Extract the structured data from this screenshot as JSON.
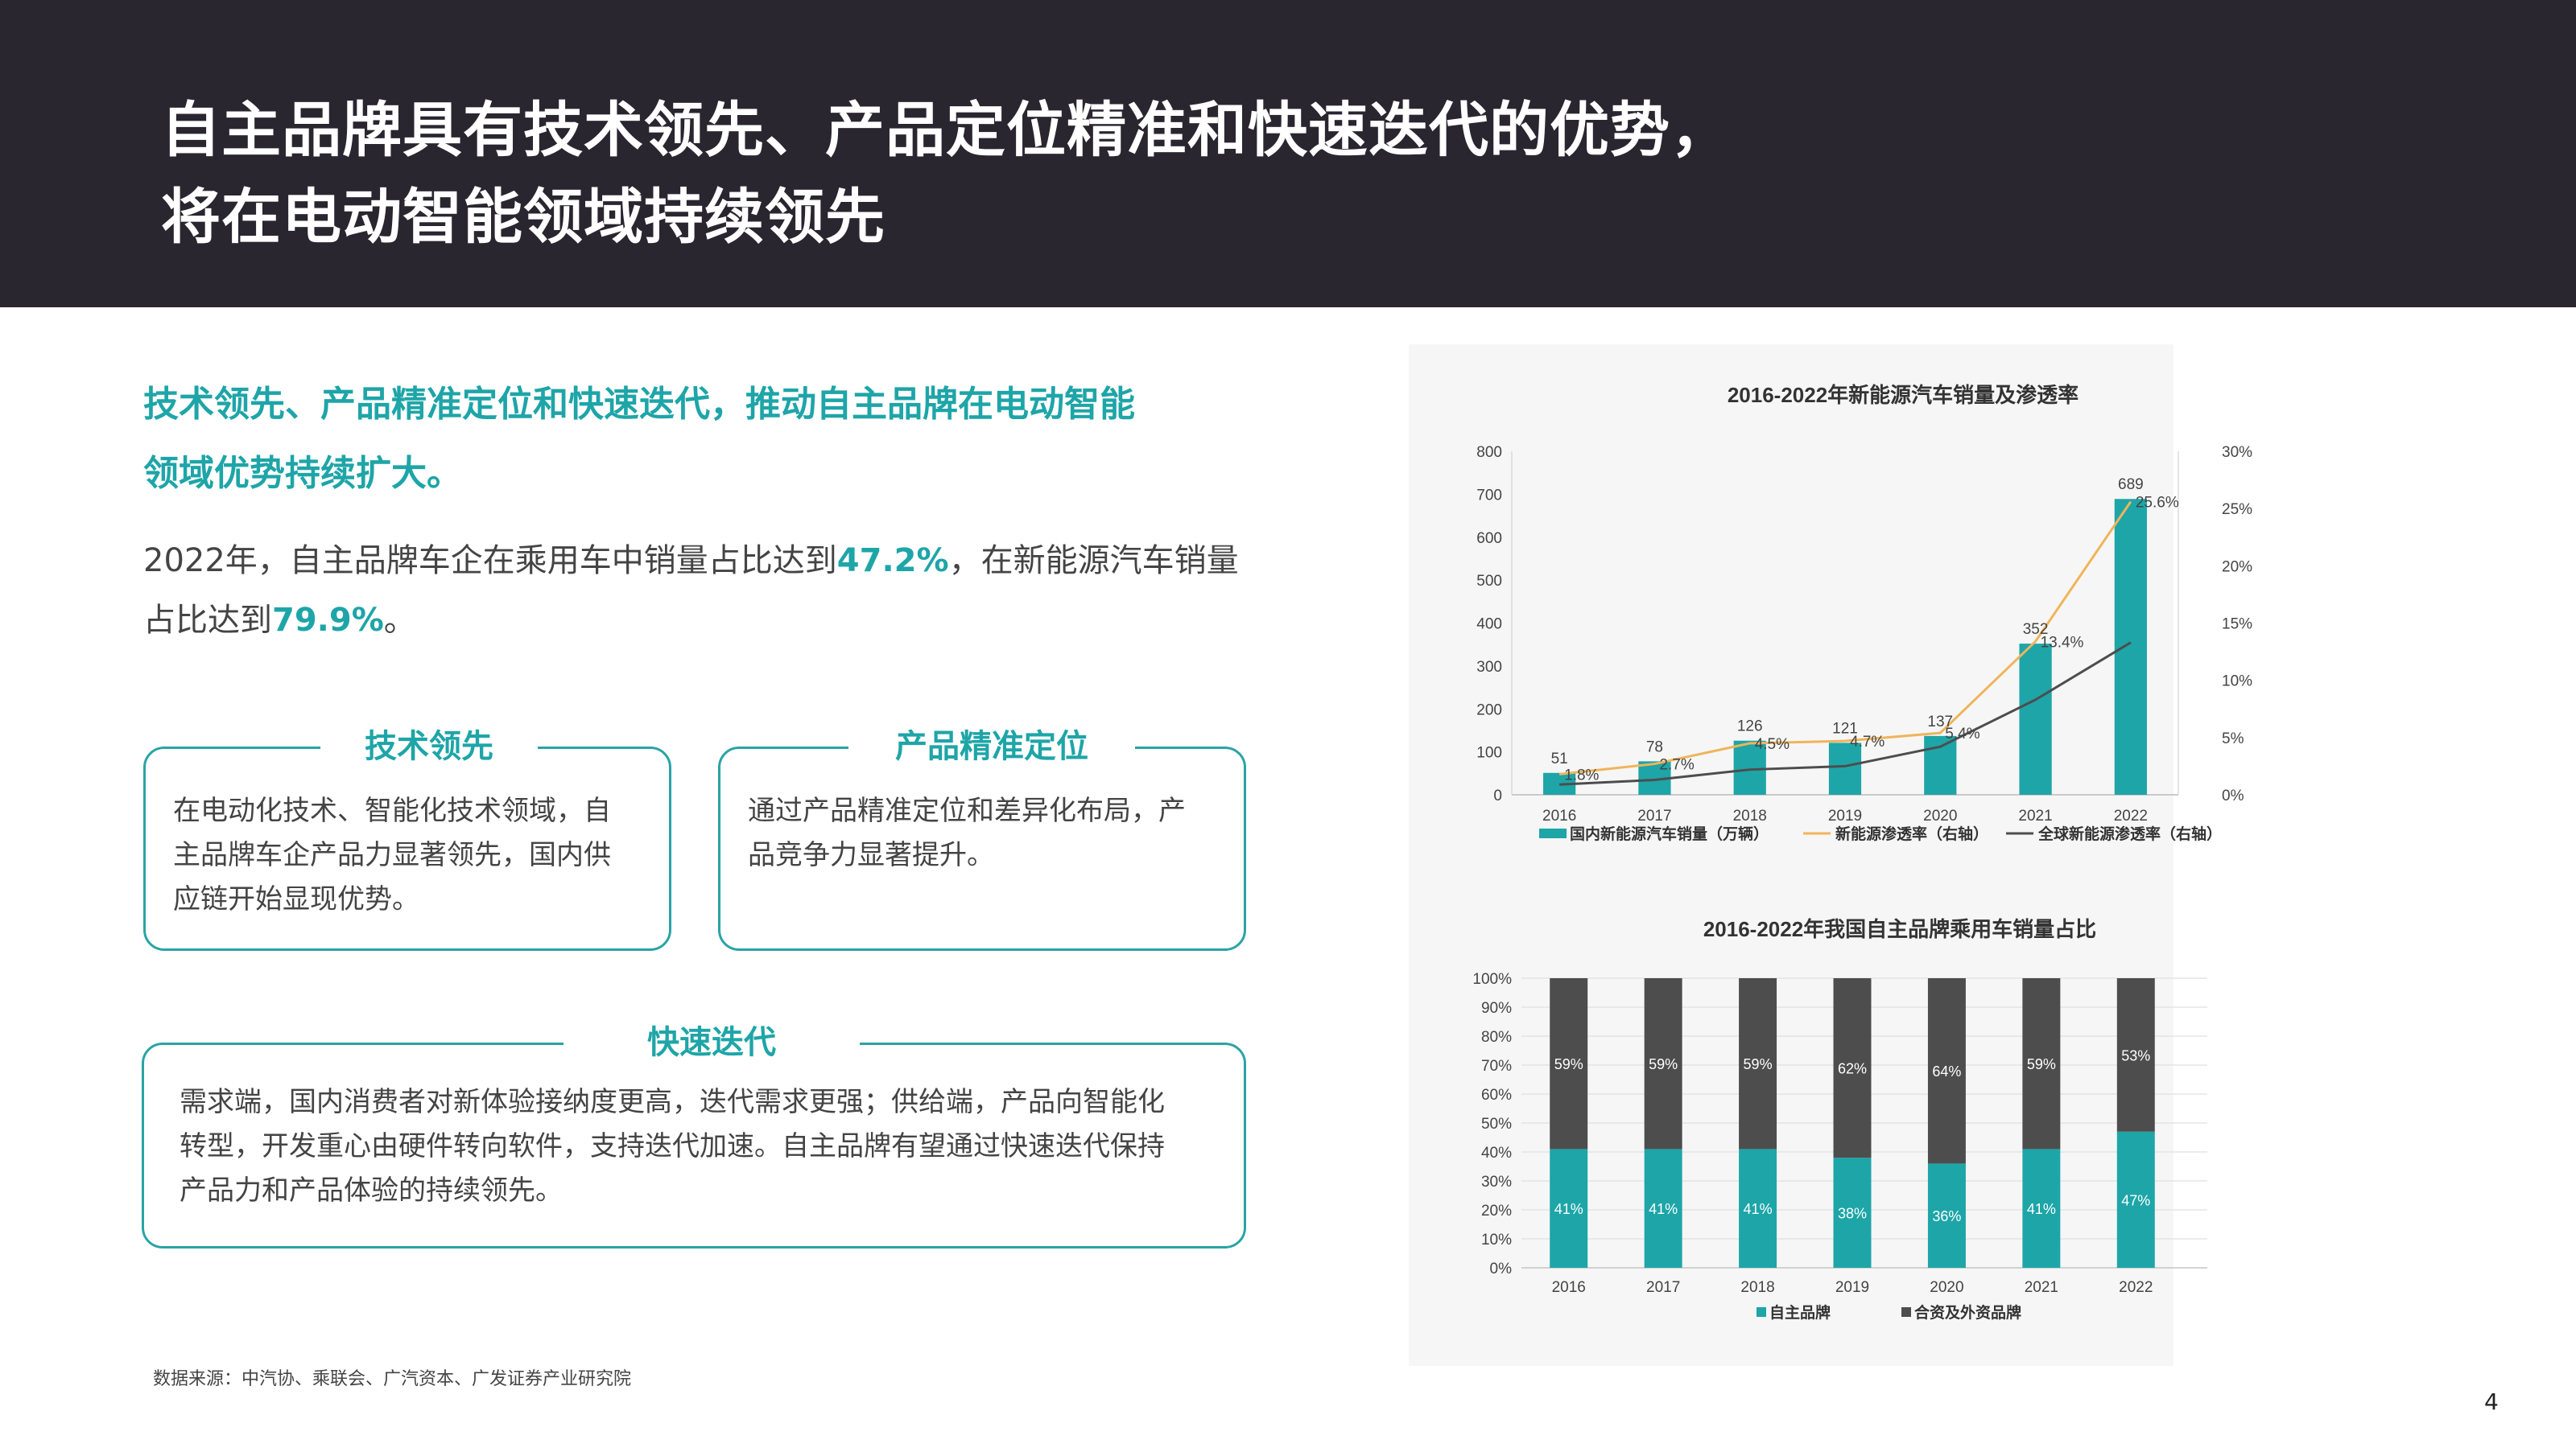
{
  "header": {
    "title_line1": "自主品牌具有技术领先、产品定位精准和快速迭代的优势，",
    "title_line2": "将在电动智能领域持续领先"
  },
  "lead": {
    "line1": "技术领先、产品精准定位和快速迭代，推动自主品牌在电动智能",
    "line2": "领域优势持续扩大。"
  },
  "summary": {
    "part1": "2022年，自主品牌车企在乘用车中销量占比达到",
    "value1": "47.2%",
    "part2": "，在新能源汽车销量",
    "part3": "占比达到",
    "value2": "79.9%",
    "part4": "。"
  },
  "cards": {
    "tech": {
      "title": "技术领先",
      "line1": "在电动化技术、智能化技术领域，自",
      "line2": "主品牌车企产品力显著领先，国内供",
      "line3": "应链开始显现优势。"
    },
    "position": {
      "title": "产品精准定位",
      "line1": "通过产品精准定位和差异化布局，产",
      "line2": "品竞争力显著提升。"
    },
    "iteration": {
      "title": "快速迭代",
      "line1": "需求端，国内消费者对新体验接纳度更高，迭代需求更强；供给端，产品向智能化",
      "line2": "转型，开发重心由硬件转向软件，支持迭代加速。自主品牌有望通过快速迭代保持",
      "line3": "产品力和产品体验的持续领先。"
    }
  },
  "source": "数据来源：中汽协、乘联会、广汽资本、广发证券产业研究院",
  "page_number": "4",
  "colors": {
    "teal": "#1ea5a8",
    "dark": "#4d4d4d",
    "orange": "#f0b45a",
    "header_bg": "#2a2630"
  },
  "chart_data": [
    {
      "type": "bar",
      "title": "2016-2022年新能源汽车销量及渗透率",
      "categories": [
        "2016",
        "2017",
        "2018",
        "2019",
        "2020",
        "2021",
        "2022"
      ],
      "ylim": [
        0,
        800
      ],
      "y_ticks": [
        "0",
        "100",
        "200",
        "300",
        "400",
        "500",
        "600",
        "700",
        "800"
      ],
      "y2lim": [
        0,
        30
      ],
      "y2_ticks": [
        "0%",
        "5%",
        "10%",
        "15%",
        "20%",
        "25%",
        "30%"
      ],
      "series": [
        {
          "name": "国内新能源汽车销量（万辆）",
          "kind": "bar",
          "axis": "left",
          "values": [
            51,
            78,
            126,
            121,
            137,
            352,
            689
          ],
          "labels": [
            "51",
            "78",
            "126",
            "121",
            "137",
            "352",
            "689"
          ]
        },
        {
          "name": "新能源渗透率（右轴）",
          "kind": "line",
          "axis": "right",
          "values": [
            1.8,
            2.7,
            4.5,
            4.7,
            5.4,
            13.4,
            25.6
          ],
          "labels": [
            "1.8%",
            "2.7%",
            "4.5%",
            "4.7%",
            "5.4%",
            "13.4%",
            "25.6%"
          ]
        },
        {
          "name": "全球新能源渗透率（右轴）",
          "kind": "line",
          "axis": "right",
          "values": [
            0.9,
            1.3,
            2.2,
            2.5,
            4.2,
            8.3,
            13.3
          ]
        }
      ],
      "legend": "bottom"
    },
    {
      "type": "bar",
      "stacked": true,
      "title": "2016-2022年我国自主品牌乘用车销量占比",
      "categories": [
        "2016",
        "2017",
        "2018",
        "2019",
        "2020",
        "2021",
        "2022"
      ],
      "ylim": [
        0,
        100
      ],
      "y_ticks": [
        "0%",
        "10%",
        "20%",
        "30%",
        "40%",
        "50%",
        "60%",
        "70%",
        "80%",
        "90%",
        "100%"
      ],
      "series": [
        {
          "name": "自主品牌",
          "values": [
            41,
            41,
            41,
            38,
            36,
            41,
            47
          ],
          "labels": [
            "41%",
            "41%",
            "41%",
            "38%",
            "36%",
            "41%",
            "47%"
          ]
        },
        {
          "name": "合资及外资品牌",
          "values": [
            59,
            59,
            59,
            62,
            64,
            59,
            53
          ],
          "labels": [
            "59%",
            "59%",
            "59%",
            "62%",
            "64%",
            "59%",
            "53%"
          ]
        }
      ],
      "legend": "bottom"
    }
  ]
}
